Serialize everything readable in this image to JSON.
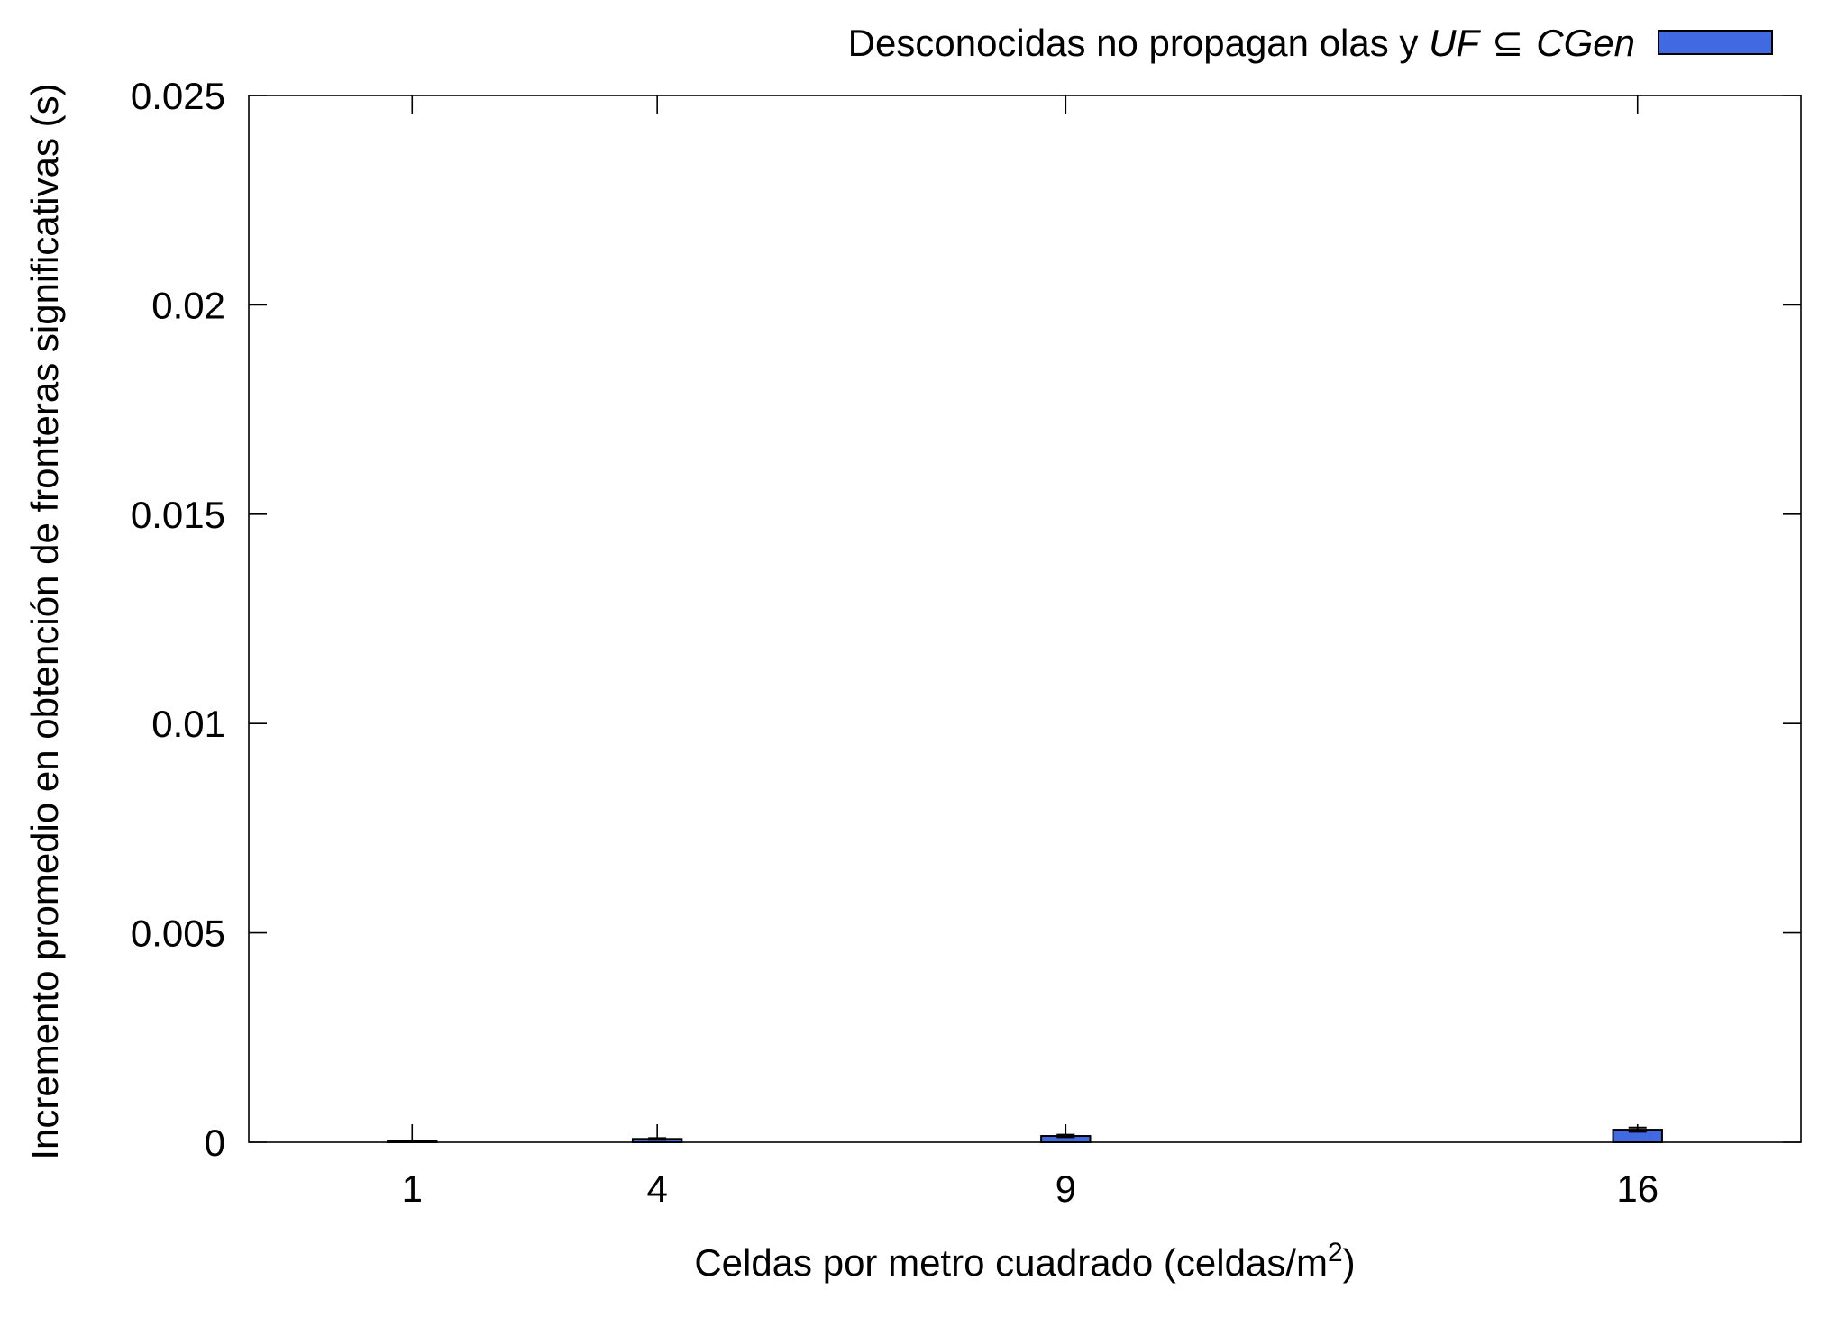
{
  "chart_data": {
    "type": "bar",
    "categories": [
      "1",
      "4",
      "9",
      "16"
    ],
    "x": [
      1,
      4,
      9,
      16
    ],
    "series": [
      {
        "name": "Desconocidas no propagan olas y UF ⊆ CGen",
        "values": [
          5e-06,
          8e-05,
          0.00015,
          0.0003
        ],
        "error": [
          5e-06,
          2e-05,
          3e-05,
          5e-05
        ],
        "color": "#4169e1"
      }
    ],
    "xlabel": "Celdas por metro cuadrado (celdas/m",
    "xlabel_sup": "2",
    "xlabel_end": ")",
    "ylabel": "Incremento promedio en obtención de fronteras significativas (s)",
    "ylim": [
      0,
      0.025
    ],
    "yticks": [
      "0",
      "0.005",
      "0.01",
      "0.015",
      "0.02",
      "0.025"
    ],
    "ytick_values": [
      0,
      0.005,
      0.01,
      0.015,
      0.02,
      0.025
    ],
    "xlim": [
      -1,
      18
    ],
    "legend": {
      "position": "top-right",
      "prefix": "Desconocidas no propagan olas y ",
      "uf": "UF",
      "subset": "⊆",
      "cgen": "CGen"
    },
    "grid": false
  }
}
